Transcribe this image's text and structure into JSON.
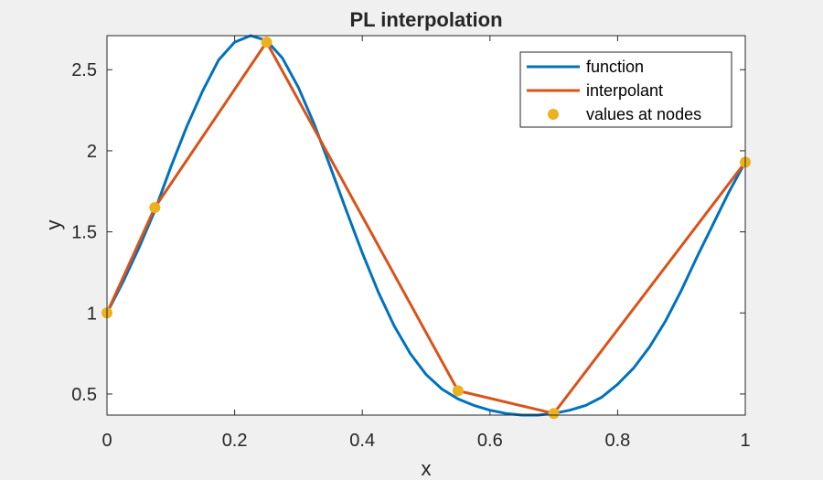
{
  "chart_data": {
    "type": "line",
    "title": "PL interpolation",
    "xlabel": "x",
    "ylabel": "y",
    "xlim": [
      0,
      1
    ],
    "ylim": [
      0.37,
      2.71
    ],
    "grid": false,
    "legend_position": "top-right",
    "x_ticks": [
      0,
      0.2,
      0.4,
      0.6,
      0.8,
      1
    ],
    "x_tick_labels": [
      "0",
      "0.2",
      "0.4",
      "0.6",
      "0.8",
      "1"
    ],
    "y_ticks": [
      0.5,
      1,
      1.5,
      2,
      2.5
    ],
    "y_tick_labels": [
      "0.5",
      "1",
      "1.5",
      "2",
      "2.5"
    ],
    "series": [
      {
        "name": "function",
        "style": "line",
        "color": "#0072bd",
        "x": [
          0,
          0.025,
          0.05,
          0.075,
          0.1,
          0.125,
          0.15,
          0.175,
          0.2,
          0.225,
          0.25,
          0.275,
          0.3,
          0.325,
          0.35,
          0.375,
          0.4,
          0.425,
          0.45,
          0.475,
          0.5,
          0.525,
          0.55,
          0.575,
          0.6,
          0.625,
          0.65,
          0.675,
          0.7,
          0.725,
          0.75,
          0.775,
          0.8,
          0.825,
          0.85,
          0.875,
          0.9,
          0.925,
          0.95,
          0.975,
          1
        ],
        "y": [
          1.0,
          1.19,
          1.4,
          1.63,
          1.9,
          2.15,
          2.37,
          2.56,
          2.67,
          2.71,
          2.68,
          2.57,
          2.39,
          2.16,
          1.9,
          1.63,
          1.37,
          1.13,
          0.92,
          0.75,
          0.62,
          0.53,
          0.47,
          0.43,
          0.4,
          0.38,
          0.37,
          0.37,
          0.38,
          0.4,
          0.43,
          0.48,
          0.56,
          0.66,
          0.79,
          0.95,
          1.14,
          1.35,
          1.55,
          1.75,
          1.93
        ]
      },
      {
        "name": "interpolant",
        "style": "line",
        "color": "#d95319",
        "x": [
          0,
          0.075,
          0.25,
          0.55,
          0.7,
          1
        ],
        "y": [
          1.0,
          1.65,
          2.67,
          0.52,
          0.38,
          1.93
        ]
      },
      {
        "name": "values at nodes",
        "style": "markers",
        "color": "#edb120",
        "x": [
          0,
          0.075,
          0.25,
          0.55,
          0.7,
          1
        ],
        "y": [
          1.0,
          1.65,
          2.67,
          0.52,
          0.38,
          1.93
        ]
      }
    ]
  }
}
